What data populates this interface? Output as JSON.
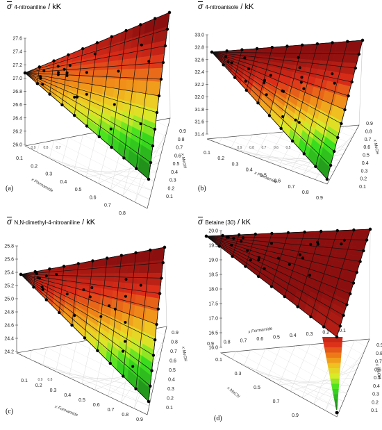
{
  "chart_data": [
    {
      "id": "a",
      "type": "surface3d",
      "panel_label": "(a)",
      "title_symbol": "σ",
      "title_subscript": "4-nitroaniline",
      "title_unit": "/ kK",
      "z_ticks": [
        "27.6",
        "27.4",
        "27.2",
        "27.0",
        "26.8",
        "26.6",
        "26.4",
        "26.2",
        "26.0"
      ],
      "zlim": [
        26.0,
        27.6
      ],
      "x_label": "x Formamide",
      "x_ticks": [
        "0.1",
        "0.2",
        "0.3",
        "0.4",
        "0.5",
        "0.6",
        "0.7",
        "0.8"
      ],
      "y_label": "x MeOH",
      "y_ticks": [
        "0.9",
        "0.8",
        "0.7",
        "0.6",
        "0.5",
        "0.4",
        "0.3",
        "0.2",
        "0.1"
      ],
      "back_ticks": [
        "0.9",
        "0.8",
        "0.7"
      ]
    },
    {
      "id": "b",
      "type": "surface3d",
      "panel_label": "(b)",
      "title_symbol": "σ",
      "title_subscript": "4-nitroanisole",
      "title_unit": "/ kK",
      "z_ticks": [
        "33.0",
        "32.8",
        "32.6",
        "32.4",
        "32.2",
        "32.0",
        "31.8",
        "31.6",
        "31.4"
      ],
      "zlim": [
        31.4,
        33.0
      ],
      "x_label": "x Formamide",
      "x_ticks": [
        "0.1",
        "0.2",
        "0.3",
        "0.4",
        "0.5",
        "0.6",
        "0.7",
        "0.8",
        "0.9"
      ],
      "y_label": "x MeOH",
      "y_ticks": [
        "0.9",
        "0.8",
        "0.7",
        "0.6",
        "0.5",
        "0.4",
        "0.3",
        "0.2",
        "0.1"
      ],
      "back_ticks": [
        "0.9",
        "0.8",
        "0.7",
        "0.6",
        "0.5"
      ]
    },
    {
      "id": "c",
      "type": "surface3d",
      "panel_label": "(c)",
      "title_symbol": "σ",
      "title_subscript": "N,N-dimethyl-4-nitroaniline",
      "title_unit": "/ kK",
      "z_ticks": [
        "25.8",
        "25.6",
        "25.4",
        "25.2",
        "25.0",
        "24.8",
        "24.6",
        "24.4",
        "24.2"
      ],
      "zlim": [
        24.2,
        25.8
      ],
      "x_label": "x Formamide",
      "x_ticks": [
        "0.1",
        "0.2",
        "0.3",
        "0.4",
        "0.5",
        "0.6",
        "0.7",
        "0.8",
        "0.9"
      ],
      "y_label": "x MeOH",
      "y_ticks": [
        "0.9",
        "0.8",
        "0.7",
        "0.6",
        "0.5",
        "0.4",
        "0.3",
        "0.2",
        "0.1"
      ],
      "back_ticks": [
        "0.9",
        "0.8"
      ]
    },
    {
      "id": "d",
      "type": "surface3d",
      "panel_label": "(d)",
      "title_symbol": "σ",
      "title_subscript": "Betaine (30)",
      "title_unit": "/ kK",
      "z_ticks": [
        "20.0",
        "19.5",
        "19.0",
        "18.5",
        "18.0",
        "17.5",
        "17.0",
        "16.5",
        "16.0"
      ],
      "zlim": [
        16.0,
        20.0
      ],
      "x_label": "x Formamide",
      "x_ticks": [
        "0.9",
        "0.8",
        "0.7",
        "0.6",
        "0.5",
        "0.4",
        "0.3",
        "0.2",
        "0.1"
      ],
      "y_label": "x MeOH",
      "y_ticks": [
        "0.9",
        "0.8",
        "0.7",
        "0.6",
        "0.5",
        "0.4",
        "0.3",
        "0.2",
        "0.1"
      ],
      "extra_label": "x MeCN",
      "extra_ticks": [
        "0.1",
        "0.3",
        "0.5",
        "0.7",
        "0.9"
      ]
    }
  ]
}
